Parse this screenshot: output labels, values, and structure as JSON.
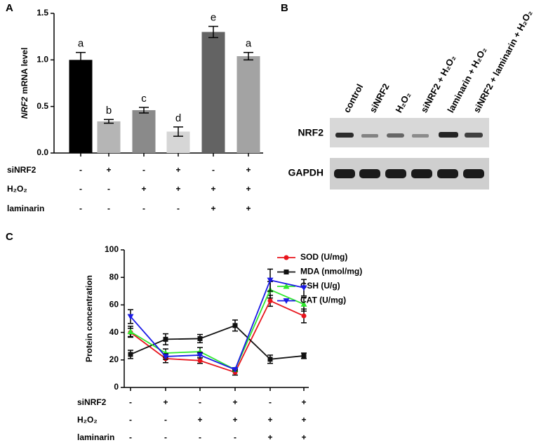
{
  "panel_labels": [
    "A",
    "B",
    "C"
  ],
  "chart_data": [
    {
      "type": "bar",
      "ylabel": {
        "italic": "NRF2",
        "rest": "mRNA level"
      },
      "values": [
        1.0,
        0.34,
        0.46,
        0.23,
        1.3,
        1.04
      ],
      "errors": [
        0.08,
        0.02,
        0.03,
        0.05,
        0.06,
        0.04
      ],
      "letters": [
        "a",
        "b",
        "c",
        "d",
        "e",
        "a"
      ],
      "colors": [
        "#000000",
        "#b5b5b5",
        "#8a8a8a",
        "#d6d6d6",
        "#636363",
        "#a3a3a3"
      ],
      "ylim": [
        0,
        1.5
      ],
      "yticks": [
        {
          "value": 0,
          "label": "0.0"
        },
        0.5,
        {
          "value": 1,
          "label": "1.0"
        },
        1.5
      ],
      "treatments": [
        {
          "name": "siNRF2",
          "signs": [
            "-",
            "+",
            "-",
            "+",
            "-",
            "+"
          ]
        },
        {
          "name": "H₂O₂",
          "signs": [
            "-",
            "-",
            "+",
            "+",
            "+",
            "+"
          ]
        },
        {
          "name": "laminarin",
          "signs": [
            "-",
            "-",
            "-",
            "-",
            "+",
            "+"
          ]
        }
      ]
    },
    {
      "type": "line",
      "ylabel": "Protein concentration",
      "ylim": [
        0,
        100
      ],
      "yticks": [
        0,
        20,
        40,
        60,
        80,
        100
      ],
      "series": [
        {
          "name": "SOD (U/mg)",
          "color": "#e8141c",
          "marker": "circle",
          "values": [
            40,
            21,
            19.5,
            11,
            63,
            52
          ],
          "errors": [
            3,
            3,
            2,
            2,
            4,
            5
          ]
        },
        {
          "name": "MDA (nmol/mg)",
          "color": "#111111",
          "marker": "square",
          "values": [
            24,
            35,
            35.5,
            45,
            20.5,
            23
          ],
          "errors": [
            3,
            4,
            3,
            4,
            3,
            2
          ]
        },
        {
          "name": "GSH (U/g)",
          "color": "#2ee82e",
          "marker": "triangle-up",
          "values": [
            40.5,
            25,
            26,
            13,
            71,
            60.5
          ],
          "errors": [
            4,
            3,
            3,
            1,
            6,
            5
          ]
        },
        {
          "name": "CAT (U/mg)",
          "color": "#1a1ae6",
          "marker": "triangle-down",
          "values": [
            51.5,
            22.5,
            23.5,
            13,
            78,
            72.5
          ],
          "errors": [
            5,
            2,
            2,
            1,
            8,
            6
          ]
        }
      ],
      "treatments": [
        {
          "name": "siNRF2",
          "signs": [
            "-",
            "+",
            "-",
            "+",
            "-",
            "+"
          ]
        },
        {
          "name": "H₂O₂",
          "signs": [
            "-",
            "-",
            "+",
            "+",
            "+",
            "+"
          ]
        },
        {
          "name": "laminarin",
          "signs": [
            "-",
            "-",
            "-",
            "-",
            "+",
            "+"
          ]
        }
      ]
    }
  ],
  "blot": {
    "lanes": [
      "control",
      "siNRF2",
      "H₂O₂",
      "siNRF2 + H₂O₂",
      "laminarin + H₂O₂",
      "siNRF2 + laminarin + H₂O₂"
    ],
    "rows": [
      "NRF2",
      "GAPDH"
    ]
  }
}
